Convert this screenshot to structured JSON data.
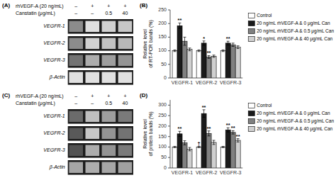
{
  "chart_data": [
    {
      "type": "heatmap",
      "title": "(A)",
      "header_labels": [
        "rhVEGF-A (20 ng/mL)",
        "Canstatin (μg/mL)"
      ],
      "header_values": [
        [
          "–",
          "+",
          "+",
          "+"
        ],
        [
          "–",
          "–",
          "0.5",
          "40"
        ]
      ],
      "categories": [
        "VEGFR-1",
        "VEGFR-2",
        "VEGFR-3",
        "β-Actin"
      ],
      "cells": [
        [
          0.55,
          0.88,
          0.82,
          0.78
        ],
        [
          0.55,
          0.82,
          0.76,
          0.72
        ],
        [
          0.45,
          0.68,
          0.62,
          0.58
        ],
        [
          0.88,
          0.88,
          0.88,
          0.88
        ]
      ],
      "zlim": [
        0,
        1
      ]
    },
    {
      "type": "bar",
      "title": "(B)",
      "ylabel": "Relative level\nof RT-PCR bands (%)",
      "categories": [
        "VEGFR-1",
        "VEGFR-2",
        "VEGFR-3"
      ],
      "series": [
        {
          "name": "Control",
          "color": "#ffffff",
          "values": [
            100,
            100,
            100
          ],
          "errors": [
            3,
            3,
            3
          ]
        },
        {
          "name": "20 ng/mL rhVEGF-A & 0 μg/mL Can",
          "color": "#1a1a1a",
          "values": [
            192,
            128,
            128
          ],
          "errors": [
            10,
            8,
            7
          ]
        },
        {
          "name": "20 ng/mL rhVEGF-A & 0.5 μg/mL Can",
          "color": "#808080",
          "values": [
            135,
            77,
            122
          ],
          "errors": [
            15,
            5,
            6
          ]
        },
        {
          "name": "20 ng/mL rhVEGF-A & 40 μg/mL Can",
          "color": "#d0d0d0",
          "values": [
            105,
            80,
            113
          ],
          "errors": [
            5,
            4,
            5
          ]
        }
      ],
      "annotations": [
        {
          "text": "**",
          "category": 0,
          "series": 1,
          "y": 204
        },
        {
          "text": "*",
          "category": 1,
          "series": 1,
          "y": 138
        },
        {
          "text": "**",
          "category": 1,
          "series": 2,
          "y": 84
        },
        {
          "text": "**",
          "category": 2,
          "series": 1,
          "y": 137
        }
      ],
      "ylim": [
        0,
        250
      ],
      "yticks": [
        0,
        50,
        100,
        150,
        200,
        250
      ],
      "grid": false,
      "legend": "right"
    },
    {
      "type": "heatmap",
      "title": "(C)",
      "header_labels": [
        "rhVEGF-A (20 ng/mL)",
        "Canstatin (μg/mL)"
      ],
      "header_values": [
        [
          "–",
          "+",
          "+",
          "+"
        ],
        [
          "–",
          "–",
          "0.5",
          "40"
        ]
      ],
      "categories": [
        "VEGFR-1",
        "VEGFR-2",
        "VEGFR-3",
        "β-Actin"
      ],
      "cells": [
        [
          0.42,
          0.75,
          0.62,
          0.48
        ],
        [
          0.35,
          0.78,
          0.58,
          0.45
        ],
        [
          0.32,
          0.68,
          0.58,
          0.48
        ],
        [
          0.65,
          0.68,
          0.65,
          0.63
        ]
      ],
      "zlim": [
        0,
        1
      ]
    },
    {
      "type": "bar",
      "title": "(D)",
      "ylabel": "Relative level\nof protein bands (%)",
      "categories": [
        "VEGFR-1",
        "VEGFR-2",
        "VEGFR-3"
      ],
      "series": [
        {
          "name": "Control",
          "color": "#ffffff",
          "values": [
            100,
            100,
            100
          ],
          "errors": [
            3,
            3,
            3
          ]
        },
        {
          "name": "20 ng/mL rhVEGF-A & 0 μg/mL Can",
          "color": "#1a1a1a",
          "values": [
            163,
            260,
            182
          ],
          "errors": [
            12,
            18,
            10
          ]
        },
        {
          "name": "20 ng/mL rhVEGF-A & 0.5 μg/mL Can",
          "color": "#808080",
          "values": [
            120,
            165,
            170
          ],
          "errors": [
            10,
            12,
            8
          ]
        },
        {
          "name": "20 ng/mL rhVEGF-A & 40 μg/mL Can",
          "color": "#d0d0d0",
          "values": [
            90,
            122,
            132
          ],
          "errors": [
            8,
            10,
            8
          ]
        }
      ],
      "annotations": [
        {
          "text": "**",
          "category": 0,
          "series": 1,
          "y": 177
        },
        {
          "text": "†",
          "category": 1,
          "series": 0,
          "y": 105
        },
        {
          "text": "**",
          "category": 1,
          "series": 1,
          "y": 280
        },
        {
          "text": "**",
          "category": 1,
          "series": 2,
          "y": 179
        },
        {
          "text": "**",
          "category": 2,
          "series": 1,
          "y": 194
        },
        {
          "text": "**",
          "category": 2,
          "series": 2,
          "y": 180
        },
        {
          "text": "**",
          "category": 2,
          "series": 3,
          "y": 142
        }
      ],
      "ylim": [
        0,
        325
      ],
      "yticks": [
        0,
        50,
        100,
        150,
        200,
        250,
        300
      ],
      "grid": false,
      "legend": "right"
    }
  ]
}
